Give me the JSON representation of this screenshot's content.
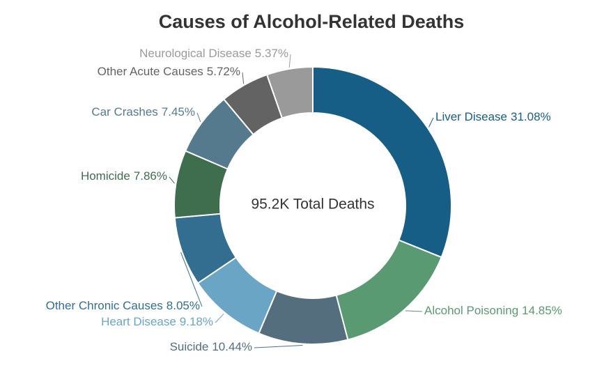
{
  "chart_data": {
    "type": "donut",
    "title": "Causes of Alcohol-Related Deaths",
    "center_label": "95.2K Total Deaths",
    "categories": [
      "Liver Disease",
      "Alcohol Poisoning",
      "Suicide",
      "Heart Disease",
      "Other Chronic Causes",
      "Homicide",
      "Car Crashes",
      "Other Acute Causes",
      "Neurological Disease"
    ],
    "values": [
      31.08,
      14.85,
      10.44,
      9.18,
      8.05,
      7.86,
      7.45,
      5.72,
      5.37
    ],
    "value_labels": [
      "31.08%",
      "14.85%",
      "10.44%",
      "9.18%",
      "8.05%",
      "7.86%",
      "7.45%",
      "5.72%",
      "5.37%"
    ],
    "colors": [
      "#175e87",
      "#5a9a72",
      "#546e7e",
      "#6aa5c5",
      "#336e91",
      "#3f6e4e",
      "#557a8e",
      "#636363",
      "#9a9a9a"
    ]
  }
}
